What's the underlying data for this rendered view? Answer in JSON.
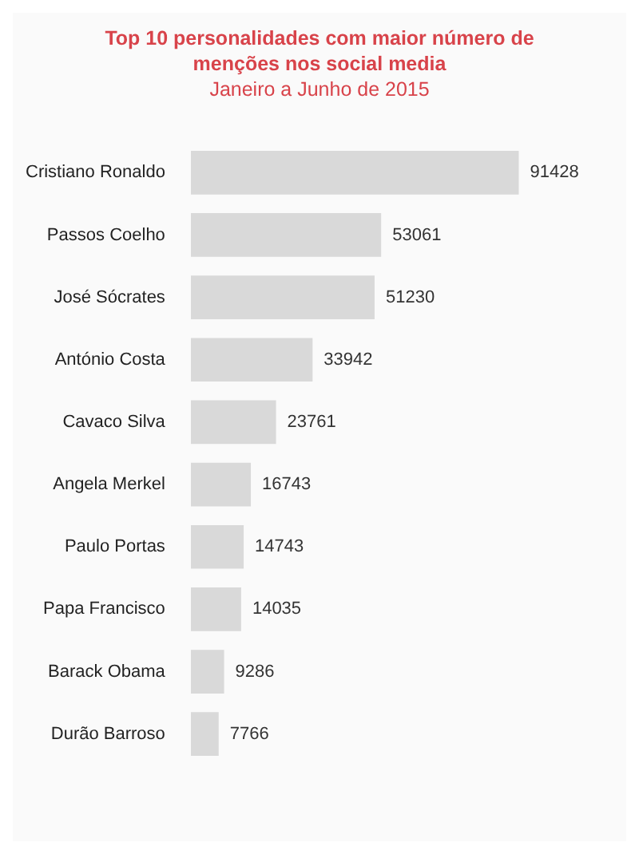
{
  "chart_data": {
    "type": "bar",
    "orientation": "horizontal",
    "title": "Top 10 personalidades com maior número de menções nos social media",
    "subtitle": "Janeiro a Junho de 2015",
    "categories": [
      "Cristiano Ronaldo",
      "Passos Coelho",
      "José Sócrates",
      "António Costa",
      "Cavaco Silva",
      "Angela Merkel",
      "Paulo Portas",
      "Papa Francisco",
      "Barack Obama",
      "Durão Barroso"
    ],
    "values": [
      91428,
      53061,
      51230,
      33942,
      23761,
      16743,
      14743,
      14035,
      9286,
      7766
    ],
    "color": "#d9d9d9",
    "data_labels": true,
    "legend": false
  }
}
